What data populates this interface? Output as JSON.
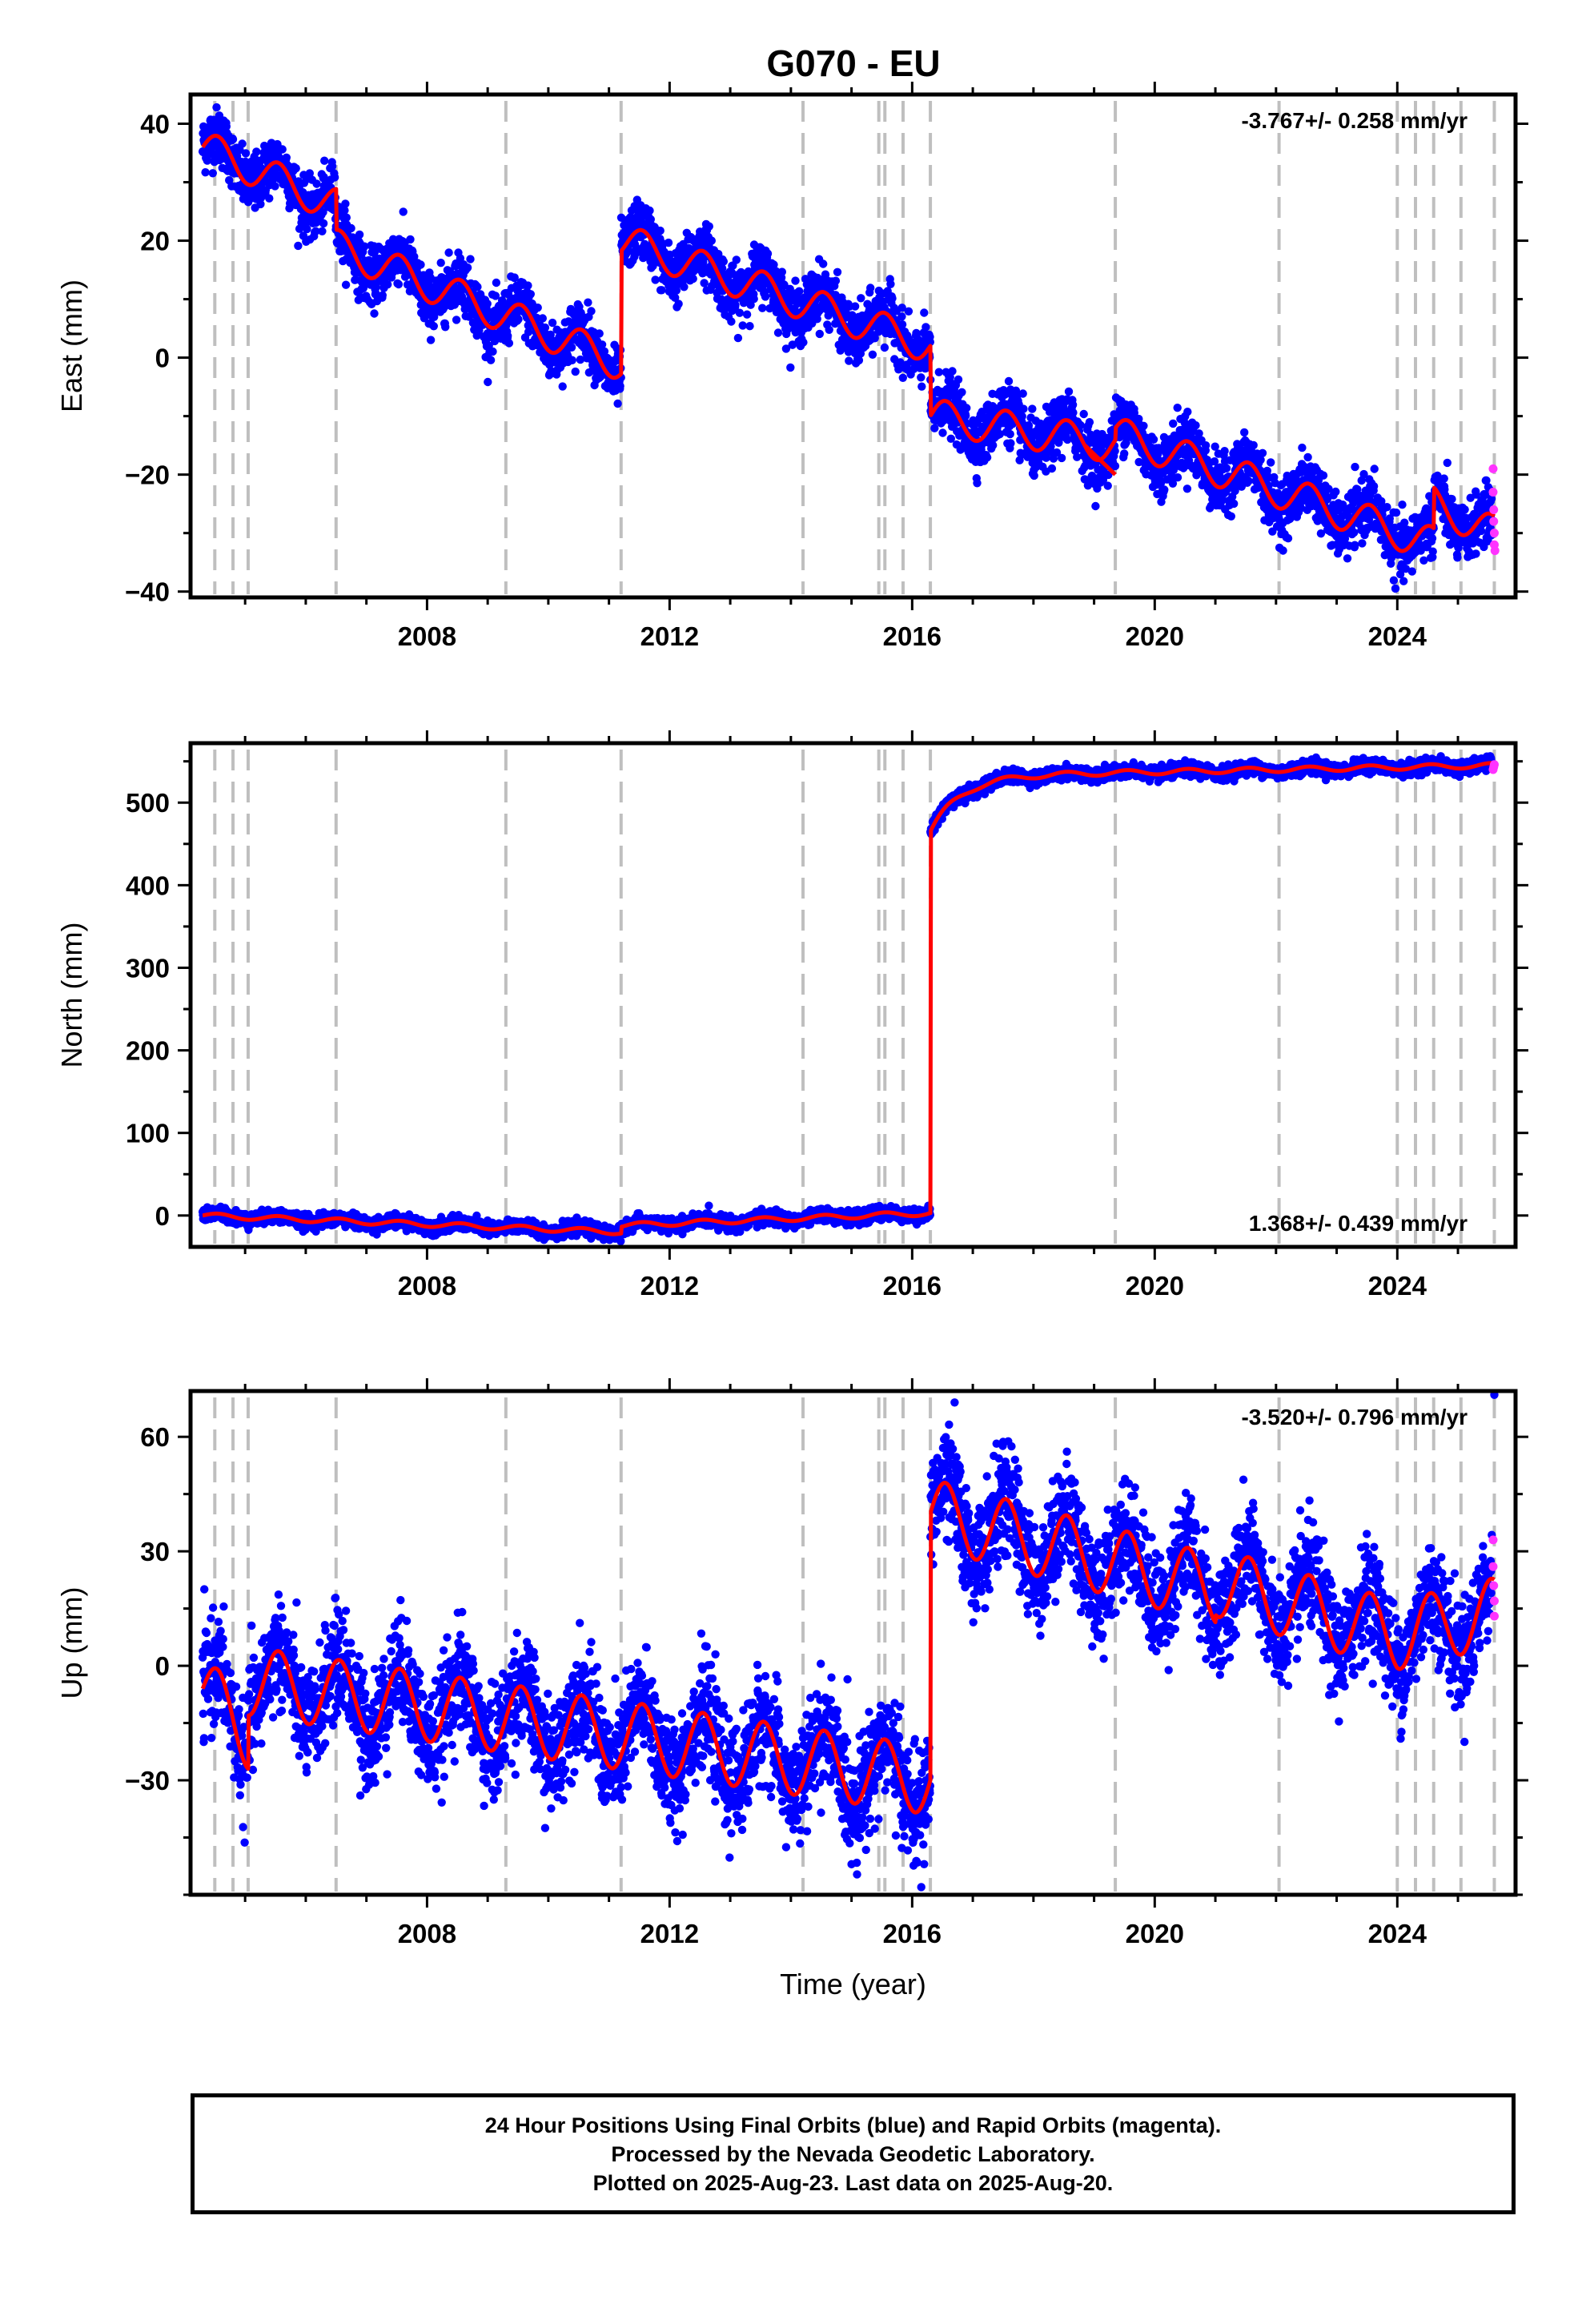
{
  "title": "G070 - EU",
  "footer": {
    "line1": "24 Hour Positions Using Final Orbits (blue) and Rapid Orbits (magenta).",
    "line2": "Processed by the Nevada Geodetic Laboratory.",
    "line3": "Plotted on 2025-Aug-23. Last data on 2025-Aug-20."
  },
  "colors": {
    "final_orbits": "#0000ff",
    "rapid_orbits": "#ff33ff",
    "model_fit": "#ff0000",
    "event_lines": "#bfbfbf"
  },
  "chart_data": [
    {
      "type": "scatter",
      "panel": "east",
      "ylabel": "East (mm)",
      "xlabel": "",
      "rate_text": "-3.767+/- 0.258 mm/yr",
      "rate_position": "top-right",
      "xlim": [
        2004.1,
        2025.95
      ],
      "ylim": [
        -41,
        45
      ],
      "xticks": [
        2008,
        2012,
        2016,
        2020,
        2024
      ],
      "yticks": [
        -40,
        -20,
        0,
        20,
        40
      ],
      "grid": false,
      "event_lines_year": [
        2004.5,
        2004.8,
        2005.05,
        2006.5,
        2009.3,
        2011.2,
        2014.2,
        2015.45,
        2015.55,
        2015.85,
        2016.3,
        2019.35,
        2022.05,
        2024.0,
        2024.3,
        2024.6,
        2025.05,
        2025.6
      ],
      "model": {
        "rate_mm_per_yr": -3.767,
        "seasonal_amplitude_mm": 3,
        "segments": [
          {
            "x0": 2004.3,
            "x1": 2006.5,
            "y0": 36,
            "y1": 26
          },
          {
            "x0": 2006.5,
            "x1": 2011.2,
            "y0": 19,
            "y1": -1
          },
          {
            "x0": 2011.2,
            "x1": 2016.3,
            "y0": 20,
            "y1": 2
          },
          {
            "x0": 2016.3,
            "x1": 2019.35,
            "y0": -10,
            "y1": -15
          },
          {
            "x0": 2019.35,
            "x1": 2024.6,
            "y0": -13,
            "y1": -32
          },
          {
            "x0": 2024.6,
            "x1": 2025.6,
            "y0": -25,
            "y1": -30
          }
        ],
        "ramp_points": [
          [
            2018.85,
            -15
          ],
          [
            2019.35,
            -20
          ]
        ]
      },
      "scatter_noise_mm": 2.4,
      "rapid_points": [
        [
          2025.58,
          -19
        ],
        [
          2025.58,
          -23
        ],
        [
          2025.59,
          -26
        ],
        [
          2025.59,
          -28
        ],
        [
          2025.6,
          -30
        ],
        [
          2025.6,
          -32
        ],
        [
          2025.61,
          -33
        ]
      ],
      "series": [
        {
          "name": "Final Orbits (blue)"
        },
        {
          "name": "Rapid Orbits (magenta)"
        }
      ]
    },
    {
      "type": "scatter",
      "panel": "north",
      "ylabel": "North (mm)",
      "xlabel": "",
      "rate_text": "1.368+/- 0.439 mm/yr",
      "rate_position": "bottom-right",
      "xlim": [
        2004.1,
        2025.95
      ],
      "ylim": [
        -38,
        572
      ],
      "xticks": [
        2008,
        2012,
        2016,
        2020,
        2024
      ],
      "yticks": [
        0,
        100,
        200,
        300,
        400,
        500
      ],
      "grid": false,
      "event_lines_year": [
        2004.5,
        2004.8,
        2005.05,
        2006.5,
        2009.3,
        2011.2,
        2014.2,
        2015.45,
        2015.55,
        2015.85,
        2016.3,
        2019.35,
        2022.05,
        2024.0,
        2024.3,
        2024.6,
        2025.05,
        2025.6
      ],
      "model": {
        "segments": [
          {
            "x0": 2004.3,
            "x1": 2011.2,
            "y0": 0,
            "y1": -20
          },
          {
            "x0": 2011.2,
            "x1": 2016.3,
            "y0": -12,
            "y1": 3
          },
          {
            "x0": 2016.3,
            "x1": 2025.6,
            "y0": 465,
            "y1": 545
          }
        ],
        "postseismic_target_mm": 532,
        "seasonal_amplitude_mm": 3
      },
      "scatter_noise_mm": 4,
      "rapid_points": [
        [
          2025.58,
          540
        ],
        [
          2025.59,
          543
        ],
        [
          2025.6,
          546
        ]
      ],
      "series": [
        {
          "name": "Final Orbits (blue)"
        },
        {
          "name": "Rapid Orbits (magenta)"
        }
      ]
    },
    {
      "type": "scatter",
      "panel": "up",
      "ylabel": "Up (mm)",
      "xlabel": "Time (year)",
      "rate_text": "-3.520+/- 0.796 mm/yr",
      "rate_position": "top-right",
      "xlim": [
        2004.1,
        2025.95
      ],
      "ylim": [
        -60,
        72
      ],
      "xticks": [
        2008,
        2012,
        2016,
        2020,
        2024
      ],
      "yticks": [
        -30,
        0,
        30,
        60
      ],
      "grid": false,
      "event_lines_year": [
        2004.5,
        2004.8,
        2005.05,
        2006.5,
        2009.3,
        2011.2,
        2014.2,
        2015.45,
        2015.55,
        2015.85,
        2016.3,
        2019.35,
        2022.05,
        2024.0,
        2024.3,
        2024.6,
        2025.05,
        2025.6
      ],
      "model": {
        "seasonal_amplitude_mm": 9,
        "segments": [
          {
            "x0": 2004.3,
            "x1": 2005.05,
            "y0": -6,
            "y1": -18
          },
          {
            "x0": 2005.05,
            "x1": 2016.3,
            "y0": -4,
            "y1": -30
          },
          {
            "x0": 2016.3,
            "x1": 2021.0,
            "y0": 40,
            "y1": 20
          },
          {
            "x0": 2021.0,
            "x1": 2024.0,
            "y0": 22,
            "y1": 8
          },
          {
            "x0": 2024.0,
            "x1": 2025.6,
            "y0": 8,
            "y1": 14
          }
        ]
      },
      "scatter_noise_mm": 7,
      "outliers": [
        [
          2016.7,
          69
        ],
        [
          2025.6,
          71
        ],
        [
          2016.15,
          -58
        ],
        [
          2015.0,
          -52
        ],
        [
          2006.9,
          -34
        ]
      ],
      "rapid_points": [
        [
          2025.58,
          33
        ],
        [
          2025.58,
          26
        ],
        [
          2025.59,
          21
        ],
        [
          2025.6,
          17
        ],
        [
          2025.6,
          13
        ]
      ],
      "series": [
        {
          "name": "Final Orbits (blue)"
        },
        {
          "name": "Rapid Orbits (magenta)"
        }
      ]
    }
  ]
}
